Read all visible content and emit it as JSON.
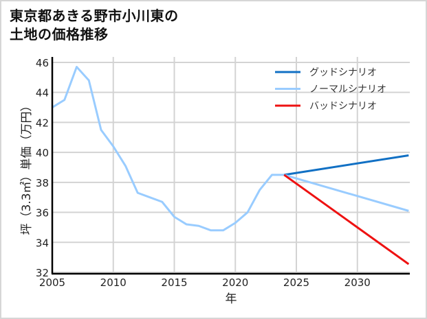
{
  "title_line1": "東京都あきる野市小川東の",
  "title_line2": "土地の価格推移",
  "chart_data": {
    "type": "line",
    "title": "東京都あきる野市小川東の土地の価格推移",
    "xlabel": "年",
    "ylabel": "坪（3.3㎡）単価（万円）",
    "xlim": [
      2005,
      2034.2
    ],
    "ylim": [
      32,
      46.4
    ],
    "x_ticks": [
      2005,
      2010,
      2015,
      2020,
      2025,
      2030
    ],
    "y_ticks": [
      32,
      34,
      36,
      38,
      40,
      42,
      44,
      46
    ],
    "grid": true,
    "legend_position": "upper right",
    "series": [
      {
        "name": "ノーマルシナリオ",
        "role": "historical",
        "color": "#99ccff",
        "x": [
          2005,
          2006,
          2007,
          2008,
          2009,
          2010,
          2011,
          2012,
          2013,
          2014,
          2015,
          2016,
          2017,
          2018,
          2019,
          2020,
          2021,
          2022,
          2023,
          2024
        ],
        "values": [
          43.0,
          43.5,
          45.7,
          44.8,
          41.5,
          40.4,
          39.1,
          37.3,
          37.0,
          36.7,
          35.7,
          35.2,
          35.1,
          34.8,
          34.8,
          35.3,
          36.0,
          37.5,
          38.5,
          38.5
        ]
      },
      {
        "name": "グッドシナリオ",
        "color": "#1170c4",
        "x": [
          2024,
          2034.2
        ],
        "values": [
          38.5,
          39.8
        ]
      },
      {
        "name": "ノーマルシナリオ",
        "color": "#99ccff",
        "x": [
          2024,
          2034.2
        ],
        "values": [
          38.5,
          36.1
        ]
      },
      {
        "name": "バッドシナリオ",
        "color": "#ee1111",
        "x": [
          2024,
          2034.2
        ],
        "values": [
          38.5,
          32.55
        ]
      }
    ],
    "legend": [
      {
        "label": "グッドシナリオ",
        "color": "#1170c4"
      },
      {
        "label": "ノーマルシナリオ",
        "color": "#99ccff"
      },
      {
        "label": "バッドシナリオ",
        "color": "#ee1111"
      }
    ]
  }
}
